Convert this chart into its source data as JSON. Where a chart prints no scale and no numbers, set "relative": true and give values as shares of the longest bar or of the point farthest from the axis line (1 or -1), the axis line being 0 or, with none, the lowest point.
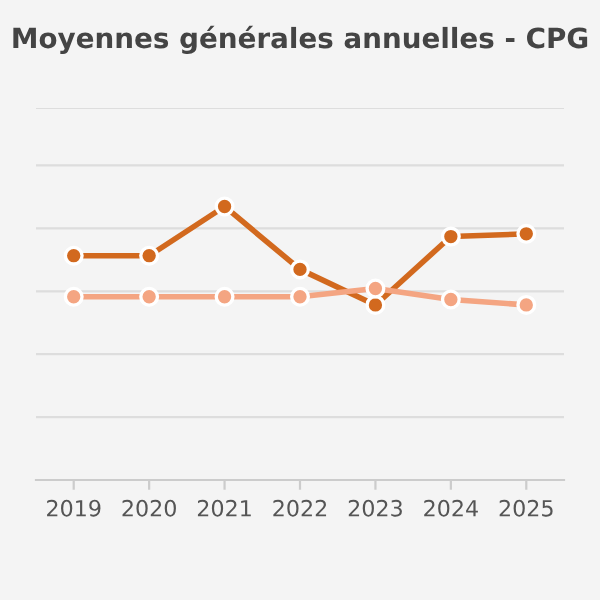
{
  "chart_data": {
    "type": "line",
    "title": "Moyennes générales annuelles - CPG",
    "categories": [
      "2019",
      "2020",
      "2021",
      "2022",
      "2023",
      "2024",
      "2025"
    ],
    "relative": true,
    "marker": "circle",
    "grid": "y",
    "series": [
      {
        "color": "#d2691e",
        "values": [
          0.82,
          0.82,
          1,
          0.77,
          0.64,
          0.89,
          0.9
        ]
      },
      {
        "color": "#f4a582",
        "values": [
          0.67,
          0.67,
          0.67,
          0.67,
          0.7,
          0.66,
          0.64
        ]
      }
    ]
  }
}
